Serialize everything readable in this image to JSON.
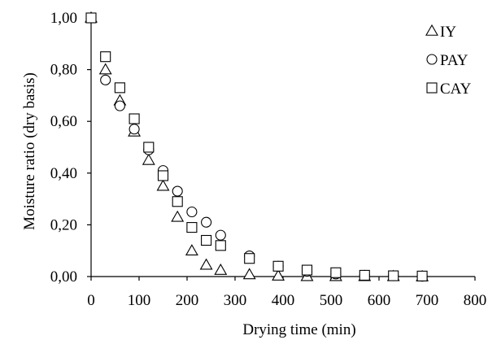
{
  "chart_data": {
    "type": "scatter",
    "xlabel": "Drying time (min)",
    "ylabel": "Moisture ratio (dry basis)",
    "xlim": [
      0,
      800
    ],
    "ylim": [
      0,
      1.0
    ],
    "x_ticks": [
      0,
      100,
      200,
      300,
      400,
      500,
      600,
      700,
      800
    ],
    "x_tick_labels": [
      "0",
      "100",
      "200",
      "300",
      "400",
      "500",
      "600",
      "700",
      "800"
    ],
    "y_ticks": [
      0,
      0.2,
      0.4,
      0.6,
      0.8,
      1.0
    ],
    "y_tick_labels": [
      "0,00",
      "0,20",
      "0,40",
      "0,60",
      "0,80",
      "1,00"
    ],
    "grid": false,
    "legend": "top-right",
    "series": [
      {
        "name": "IY",
        "marker": "triangle",
        "x": [
          0,
          30,
          60,
          90,
          120,
          150,
          180,
          210,
          240,
          270,
          330,
          390,
          450,
          510,
          570,
          630,
          690
        ],
        "y": [
          1.0,
          0.8,
          0.68,
          0.56,
          0.45,
          0.35,
          0.23,
          0.1,
          0.045,
          0.025,
          0.008,
          0.003,
          0.001,
          0.001,
          0.001,
          0.001,
          0.0
        ]
      },
      {
        "name": "PAY",
        "marker": "circle",
        "x": [
          0,
          30,
          60,
          90,
          120,
          150,
          180,
          210,
          240,
          270,
          330,
          390,
          450,
          510,
          570,
          630,
          690
        ],
        "y": [
          1.0,
          0.76,
          0.66,
          0.57,
          0.49,
          0.41,
          0.33,
          0.25,
          0.21,
          0.16,
          0.08,
          0.04,
          0.02,
          0.01,
          0.005,
          0.003,
          0.001
        ]
      },
      {
        "name": "CAY",
        "marker": "square",
        "x": [
          0,
          30,
          60,
          90,
          120,
          150,
          180,
          210,
          240,
          270,
          330,
          390,
          450,
          510,
          570,
          630,
          690
        ],
        "y": [
          1.0,
          0.85,
          0.73,
          0.61,
          0.5,
          0.39,
          0.29,
          0.19,
          0.14,
          0.12,
          0.07,
          0.04,
          0.025,
          0.015,
          0.005,
          0.003,
          0.002
        ]
      }
    ]
  }
}
